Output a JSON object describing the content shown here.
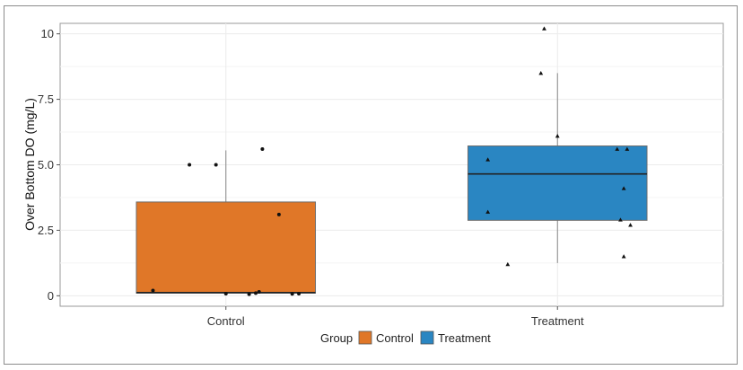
{
  "chart_data": {
    "type": "box",
    "title": "",
    "xlabel": "",
    "ylabel": "Over Bottom DO (mg/L)",
    "ylim": [
      -0.4,
      10.4
    ],
    "yticks": [
      0,
      2.5,
      5.0,
      7.5,
      10
    ],
    "ytick_labels": [
      "0",
      "2.5",
      "5.0",
      "7.5",
      "10"
    ],
    "grid": true,
    "legend": {
      "title": "Group",
      "placement": "bottom",
      "entries": [
        {
          "label": "Control",
          "color": "#E07728"
        },
        {
          "label": "Treatment",
          "color": "#2A86C2"
        }
      ]
    },
    "categories": [
      "Control",
      "Treatment"
    ],
    "boxes": [
      {
        "name": "Control",
        "color": "#E07728",
        "marker": "circle",
        "whisker_low": 0.05,
        "q1": 0.1,
        "median": 0.12,
        "q3": 3.58,
        "whisker_high": 5.55,
        "points": [
          {
            "x": -0.22,
            "y": 0.2
          },
          {
            "x": -0.11,
            "y": 5.0
          },
          {
            "x": -0.03,
            "y": 5.0
          },
          {
            "x": 0.0,
            "y": 0.08
          },
          {
            "x": 0.07,
            "y": 0.06
          },
          {
            "x": 0.09,
            "y": 0.1
          },
          {
            "x": 0.1,
            "y": 0.15
          },
          {
            "x": 0.11,
            "y": 5.6
          },
          {
            "x": 0.16,
            "y": 3.1
          },
          {
            "x": 0.2,
            "y": 0.07
          },
          {
            "x": 0.22,
            "y": 0.08
          }
        ]
      },
      {
        "name": "Treatment",
        "color": "#2A86C2",
        "marker": "triangle",
        "whisker_low": 1.25,
        "q1": 2.88,
        "median": 4.65,
        "q3": 5.72,
        "whisker_high": 8.5,
        "points": [
          {
            "x": -0.21,
            "y": 5.2
          },
          {
            "x": -0.21,
            "y": 3.2
          },
          {
            "x": -0.15,
            "y": 1.2
          },
          {
            "x": -0.05,
            "y": 8.5
          },
          {
            "x": -0.04,
            "y": 10.2
          },
          {
            "x": 0.0,
            "y": 6.1
          },
          {
            "x": 0.18,
            "y": 5.6
          },
          {
            "x": 0.19,
            "y": 2.9
          },
          {
            "x": 0.2,
            "y": 4.1
          },
          {
            "x": 0.2,
            "y": 1.5
          },
          {
            "x": 0.21,
            "y": 5.6
          },
          {
            "x": 0.22,
            "y": 2.7
          }
        ]
      }
    ]
  }
}
